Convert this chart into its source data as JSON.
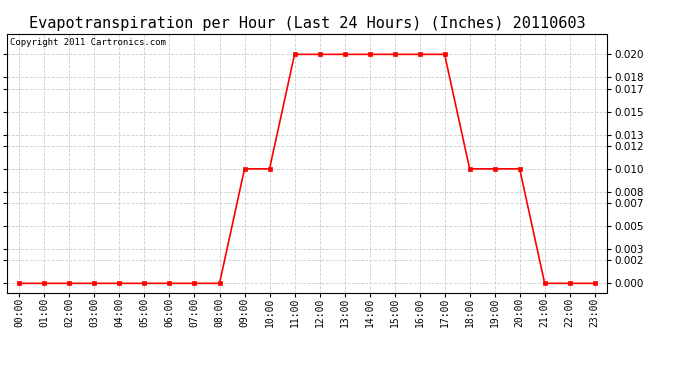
{
  "title": "Evapotranspiration per Hour (Last 24 Hours) (Inches) 20110603",
  "copyright_text": "Copyright 2011 Cartronics.com",
  "x_labels": [
    "00:00",
    "01:00",
    "02:00",
    "03:00",
    "04:00",
    "05:00",
    "06:00",
    "07:00",
    "08:00",
    "09:00",
    "10:00",
    "11:00",
    "12:00",
    "13:00",
    "14:00",
    "15:00",
    "16:00",
    "17:00",
    "18:00",
    "19:00",
    "20:00",
    "21:00",
    "22:00",
    "23:00"
  ],
  "x_values": [
    0,
    1,
    2,
    3,
    4,
    5,
    6,
    7,
    8,
    9,
    10,
    11,
    12,
    13,
    14,
    15,
    16,
    17,
    18,
    19,
    20,
    21,
    22,
    23
  ],
  "y_values": [
    0.0,
    0.0,
    0.0,
    0.0,
    0.0,
    0.0,
    0.0,
    0.0,
    0.0,
    0.01,
    0.01,
    0.02,
    0.02,
    0.02,
    0.02,
    0.02,
    0.02,
    0.02,
    0.01,
    0.01,
    0.01,
    0.0,
    0.0,
    0.0
  ],
  "line_color": "red",
  "marker": "s",
  "marker_size": 3,
  "marker_color": "red",
  "background_color": "#ffffff",
  "grid_color": "#cccccc",
  "grid_style": "--",
  "y_ticks": [
    0.0,
    0.002,
    0.003,
    0.005,
    0.007,
    0.008,
    0.01,
    0.012,
    0.013,
    0.015,
    0.017,
    0.018,
    0.02
  ],
  "ylim": [
    -0.0008,
    0.0218
  ],
  "xlim": [
    -0.5,
    23.5
  ],
  "title_fontsize": 11,
  "copyright_fontsize": 6.5,
  "tick_fontsize": 7,
  "y_tick_fontsize": 7.5
}
